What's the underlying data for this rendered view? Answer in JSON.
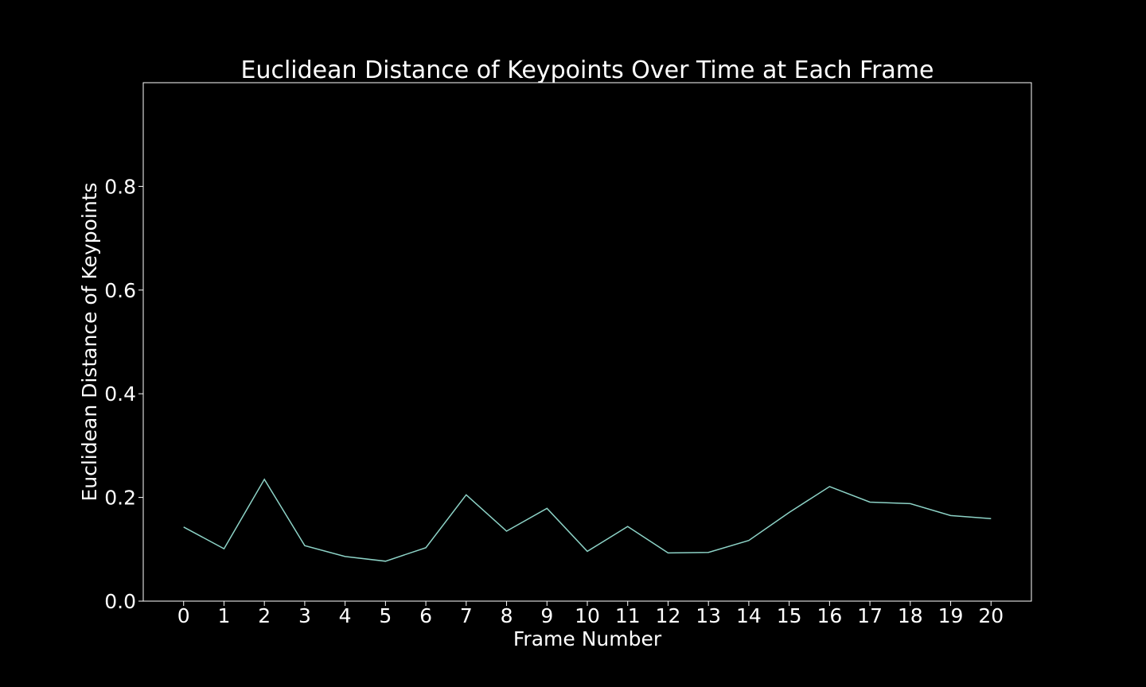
{
  "chart_data": {
    "type": "line",
    "title": "Euclidean Distance of Keypoints Over Time at Each Frame",
    "xlabel": "Frame Number",
    "ylabel": "Euclidean Distance of Keypoints",
    "x": [
      0,
      1,
      2,
      3,
      4,
      5,
      6,
      7,
      8,
      9,
      10,
      11,
      12,
      13,
      14,
      15,
      16,
      17,
      18,
      19,
      20
    ],
    "y": [
      0.143,
      0.101,
      0.235,
      0.107,
      0.086,
      0.077,
      0.103,
      0.205,
      0.135,
      0.179,
      0.096,
      0.144,
      0.093,
      0.094,
      0.117,
      0.171,
      0.221,
      0.191,
      0.188,
      0.165,
      0.159
    ],
    "xticks": [
      "0",
      "1",
      "2",
      "3",
      "4",
      "5",
      "6",
      "7",
      "8",
      "9",
      "10",
      "11",
      "12",
      "13",
      "14",
      "15",
      "16",
      "17",
      "18",
      "19",
      "20"
    ],
    "yticks": [
      "0.0",
      "0.2",
      "0.4",
      "0.6",
      "0.8"
    ],
    "ytick_values": [
      0.0,
      0.2,
      0.4,
      0.6,
      0.8
    ],
    "xlim": [
      -1,
      21
    ],
    "ylim": [
      0,
      1.0
    ],
    "grid": false,
    "line_color": "#8dd3c7",
    "background_color": "#000000",
    "text_color": "#ffffff"
  }
}
